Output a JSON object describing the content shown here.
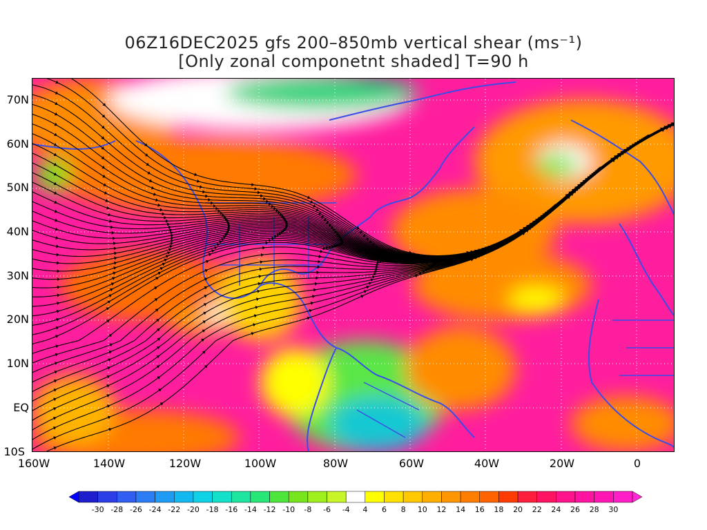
{
  "title_line1": "06Z16DEC2025 gfs 200–850mb vertical shear (ms⁻¹)",
  "title_line2": "[Only zonal componetnt shaded] T=90 h",
  "lat_labels": [
    "70N",
    "60N",
    "50N",
    "40N",
    "30N",
    "20N",
    "10N",
    "EQ",
    "10S"
  ],
  "lon_labels": [
    "160W",
    "140W",
    "120W",
    "100W",
    "80W",
    "60W",
    "40W",
    "20W",
    "0"
  ],
  "colorbar": {
    "labels": [
      "-30",
      "-28",
      "-26",
      "-24",
      "-22",
      "-20",
      "-18",
      "-16",
      "-14",
      "-12",
      "-10",
      "-8",
      "-6",
      "-4",
      "4",
      "6",
      "8",
      "10",
      "12",
      "14",
      "16",
      "18",
      "20",
      "22",
      "24",
      "26",
      "28",
      "30"
    ],
    "colors": [
      "#1e1ecc",
      "#2a3de6",
      "#2f5ef0",
      "#2c7df5",
      "#1f9af5",
      "#14b8f0",
      "#0fd2e6",
      "#12e0c8",
      "#1ee6a0",
      "#28e678",
      "#4ee63c",
      "#78e61e",
      "#a0f01e",
      "#c8f528",
      "#ffffff",
      "#ffff00",
      "#ffe100",
      "#ffc800",
      "#ffaf00",
      "#ff9600",
      "#ff7d00",
      "#ff6400",
      "#ff3c00",
      "#ff1e3c",
      "#ff1464",
      "#ff148c",
      "#ff14a0",
      "#ff14b4",
      "#ff1ec8"
    ],
    "ends": [
      "#0000ff",
      "#ff28d2"
    ]
  },
  "colors": {
    "coast": "#3a4de6",
    "streamline": "#000000",
    "grid": "#ffffff"
  }
}
